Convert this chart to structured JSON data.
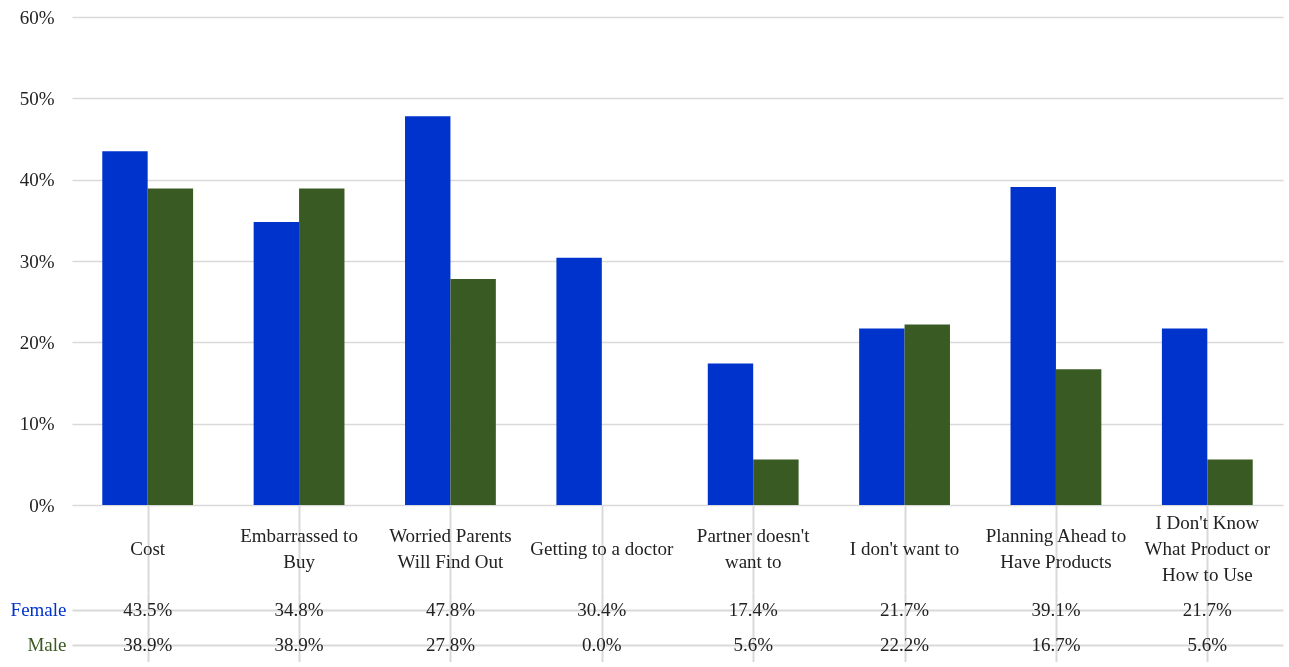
{
  "chart_data": {
    "type": "bar",
    "categories": [
      "Cost",
      "Embarrassed to Buy",
      "Worried Parents Will Find Out",
      "Getting to a doctor",
      "Partner doesn't want to",
      "I don't want to",
      "Planning Ahead to Have Products",
      "I Don't Know What Product or How to Use"
    ],
    "series": [
      {
        "name": "Female",
        "color": "#0033cc",
        "values": [
          43.5,
          34.8,
          47.8,
          30.4,
          17.4,
          21.7,
          39.1,
          21.7
        ],
        "value_labels": [
          "43.5%",
          "34.8%",
          "47.8%",
          "30.4%",
          "17.4%",
          "21.7%",
          "39.1%",
          "21.7%"
        ]
      },
      {
        "name": "Male",
        "color": "#3a5a23",
        "values": [
          38.9,
          38.9,
          27.8,
          0.0,
          5.6,
          22.2,
          16.7,
          5.6
        ],
        "value_labels": [
          "38.9%",
          "38.9%",
          "27.8%",
          "0.0%",
          "5.6%",
          "22.2%",
          "16.7%",
          "5.6%"
        ]
      }
    ],
    "ylim": [
      0,
      60
    ],
    "yticks": [
      {
        "value": 0,
        "label": "0%"
      },
      {
        "value": 10,
        "label": "10%"
      },
      {
        "value": 20,
        "label": "20%"
      },
      {
        "value": 30,
        "label": "30%"
      },
      {
        "value": 40,
        "label": "40%"
      },
      {
        "value": 50,
        "label": "50%"
      },
      {
        "value": 60,
        "label": "60%"
      }
    ],
    "grid": "y",
    "legend": false
  }
}
